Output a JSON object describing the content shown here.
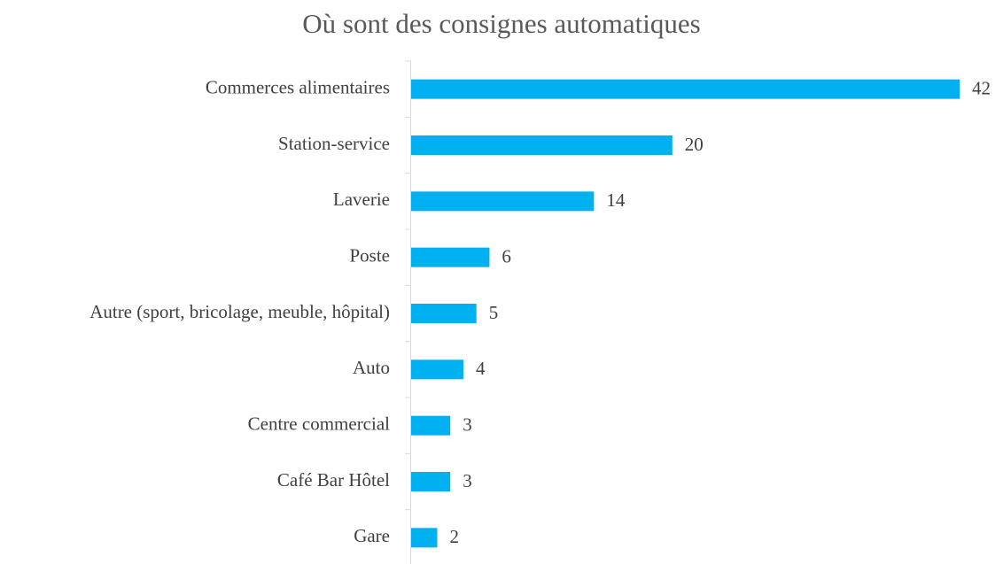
{
  "chart_data": {
    "type": "bar",
    "orientation": "horizontal",
    "title": "Où sont des consignes automatiques",
    "categories": [
      "Commerces alimentaires",
      "Station-service",
      "Laverie",
      "Poste",
      "Autre (sport, bricolage, meuble, hôpital)",
      "Auto",
      "Centre commercial",
      "Café Bar Hôtel",
      "Gare"
    ],
    "values": [
      42,
      20,
      14,
      6,
      5,
      4,
      3,
      3,
      2
    ],
    "color": "#00b0f0"
  }
}
